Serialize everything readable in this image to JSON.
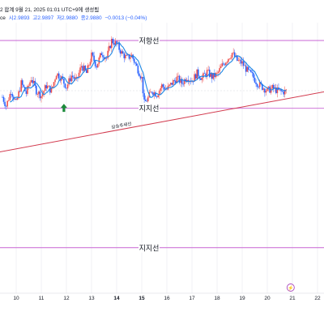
{
  "header": {
    "line1": "2 합계 9월 21, 2025 01:01 UTC+9에 생성됨",
    "ohlc_prefix": "ce",
    "open": "시2.9893",
    "high": "고2.9897",
    "low": "저2.9880",
    "close": "종2.9880",
    "change": "−0.0013 (−0.04%)"
  },
  "colors": {
    "up": "#ef5350",
    "down": "#2962ff",
    "ma": "#1e88e5",
    "level_line": "#c864d4",
    "trend_line": "#d23a4e",
    "grid": "#e6e8ee",
    "arrow": "#1b8a3a"
  },
  "chart_data": {
    "type": "candlestick",
    "title": "",
    "x_ticks": [
      "10",
      "11",
      "12",
      "13",
      "14",
      "15",
      "16",
      "17",
      "18",
      "19",
      "20",
      "21",
      "22"
    ],
    "bold_ticks": [
      "14",
      "15"
    ],
    "ylim": [
      0,
      100
    ],
    "close_path": [
      [
        9.45,
        55
      ],
      [
        9.6,
        48
      ],
      [
        9.8,
        60
      ],
      [
        10.0,
        50
      ],
      [
        10.2,
        66
      ],
      [
        10.4,
        58
      ],
      [
        10.6,
        70
      ],
      [
        10.8,
        60
      ],
      [
        11.0,
        56
      ],
      [
        11.2,
        64
      ],
      [
        11.4,
        60
      ],
      [
        11.6,
        74
      ],
      [
        11.8,
        70
      ],
      [
        12.0,
        63
      ],
      [
        12.2,
        72
      ],
      [
        12.4,
        68
      ],
      [
        12.6,
        80
      ],
      [
        12.8,
        74
      ],
      [
        13.0,
        88
      ],
      [
        13.2,
        80
      ],
      [
        13.4,
        90
      ],
      [
        13.6,
        86
      ],
      [
        13.8,
        100
      ],
      [
        14.0,
        97
      ],
      [
        14.2,
        90
      ],
      [
        14.4,
        86
      ],
      [
        14.6,
        88
      ],
      [
        14.8,
        79
      ],
      [
        15.0,
        70
      ],
      [
        15.1,
        50
      ],
      [
        15.25,
        54
      ],
      [
        15.4,
        60
      ],
      [
        15.6,
        57
      ],
      [
        15.8,
        64
      ],
      [
        16.0,
        61
      ],
      [
        16.2,
        66
      ],
      [
        16.4,
        70
      ],
      [
        16.6,
        66
      ],
      [
        16.8,
        71
      ],
      [
        17.0,
        68
      ],
      [
        17.2,
        74
      ],
      [
        17.4,
        70
      ],
      [
        17.6,
        75
      ],
      [
        17.8,
        71
      ],
      [
        18.0,
        73
      ],
      [
        18.2,
        80
      ],
      [
        18.4,
        85
      ],
      [
        18.6,
        90
      ],
      [
        18.8,
        84
      ],
      [
        19.0,
        82
      ],
      [
        19.2,
        76
      ],
      [
        19.4,
        72
      ],
      [
        19.6,
        66
      ],
      [
        19.8,
        63
      ],
      [
        20.0,
        60
      ],
      [
        20.2,
        62
      ],
      [
        20.4,
        60
      ],
      [
        20.6,
        59
      ],
      [
        20.8,
        60
      ]
    ],
    "moving_average": "MA",
    "resistance": {
      "label": "저항선",
      "y": 100
    },
    "support": {
      "label": "지지선",
      "y": 46
    },
    "support2": {
      "label": "지지선",
      "y": -65
    },
    "trendline": {
      "label": "상승추세선",
      "from": [
        9.0,
        10
      ],
      "to": [
        22.5,
        60
      ]
    },
    "markers": [
      {
        "type": "buy-arrow",
        "x": 11.9,
        "y": 47
      }
    ],
    "event_icon": {
      "x": 20.93,
      "glyph": "⚡"
    }
  }
}
